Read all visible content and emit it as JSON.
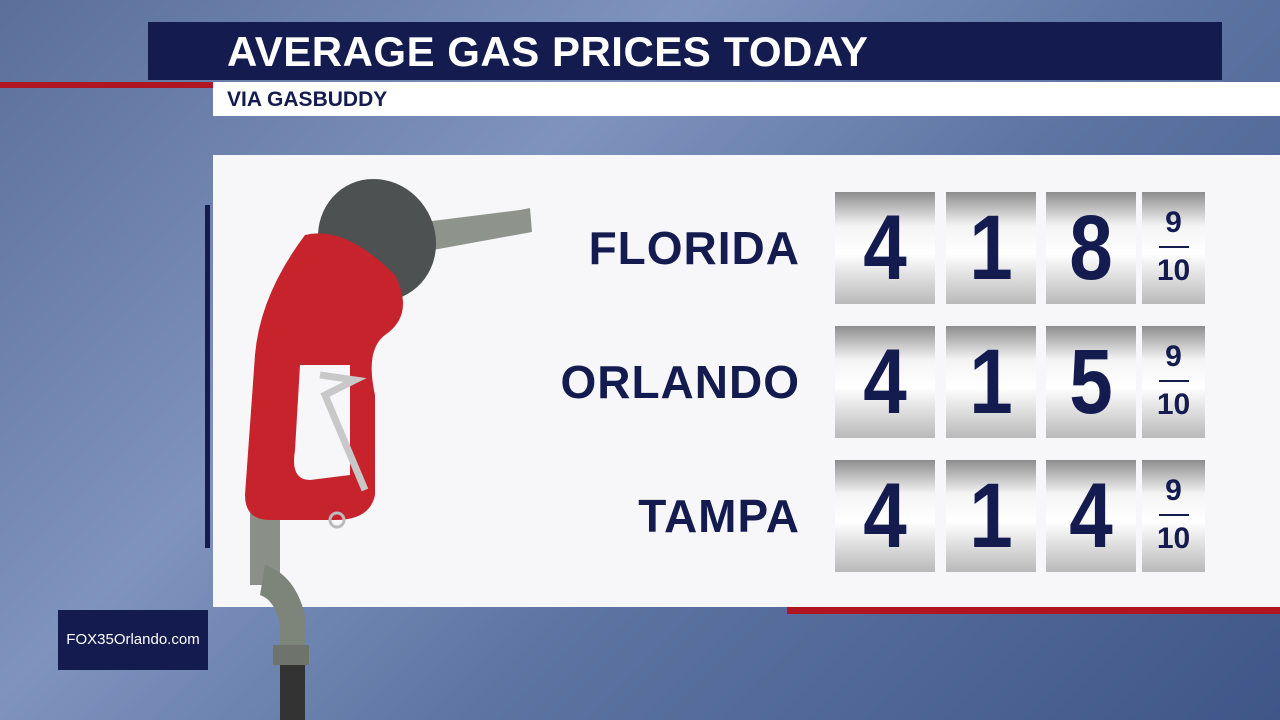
{
  "header": {
    "title": "AVERAGE GAS PRICES TODAY",
    "subtitle": "VIA GASBUDDY"
  },
  "rows": [
    {
      "location": "FLORIDA",
      "digits": [
        "4",
        "1",
        "8"
      ],
      "fraction": {
        "numerator": "9",
        "denominator": "10"
      }
    },
    {
      "location": "ORLANDO",
      "digits": [
        "4",
        "1",
        "5"
      ],
      "fraction": {
        "numerator": "9",
        "denominator": "10"
      }
    },
    {
      "location": "TAMPA",
      "digits": [
        "4",
        "1",
        "4"
      ],
      "fraction": {
        "numerator": "9",
        "denominator": "10"
      }
    }
  ],
  "watermark": "FOX35Orlando.com"
}
